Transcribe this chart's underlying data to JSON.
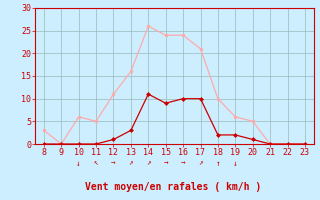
{
  "x_hours": [
    8,
    9,
    10,
    11,
    12,
    13,
    14,
    15,
    16,
    17,
    18,
    19,
    20,
    21,
    22,
    23
  ],
  "wind_avg": [
    0,
    0,
    0,
    0,
    1,
    3,
    11,
    9,
    10,
    10,
    2,
    2,
    1,
    0,
    0,
    0
  ],
  "wind_gust": [
    3,
    0,
    6,
    5,
    11,
    16,
    26,
    24,
    24,
    21,
    10,
    6,
    5,
    0,
    0,
    0
  ],
  "wind_dir_arrows": [
    "",
    "",
    "↓",
    "↖",
    "→",
    "↗",
    "↗",
    "→",
    "→",
    "↗",
    "↑",
    "↓",
    "",
    "",
    "",
    ""
  ],
  "xlabel": "Vent moyen/en rafales ( km/h )",
  "xlim": [
    7.5,
    23.5
  ],
  "ylim": [
    0,
    30
  ],
  "yticks": [
    0,
    5,
    10,
    15,
    20,
    25,
    30
  ],
  "xticks": [
    8,
    9,
    10,
    11,
    12,
    13,
    14,
    15,
    16,
    17,
    18,
    19,
    20,
    21,
    22,
    23
  ],
  "bg_color": "#cceeff",
  "grid_color": "#99bbbb",
  "avg_color": "#cc0000",
  "gust_color": "#ffaaaa",
  "spine_color": "#cc0000",
  "tick_label_fontsize": 6,
  "xlabel_fontsize": 7
}
